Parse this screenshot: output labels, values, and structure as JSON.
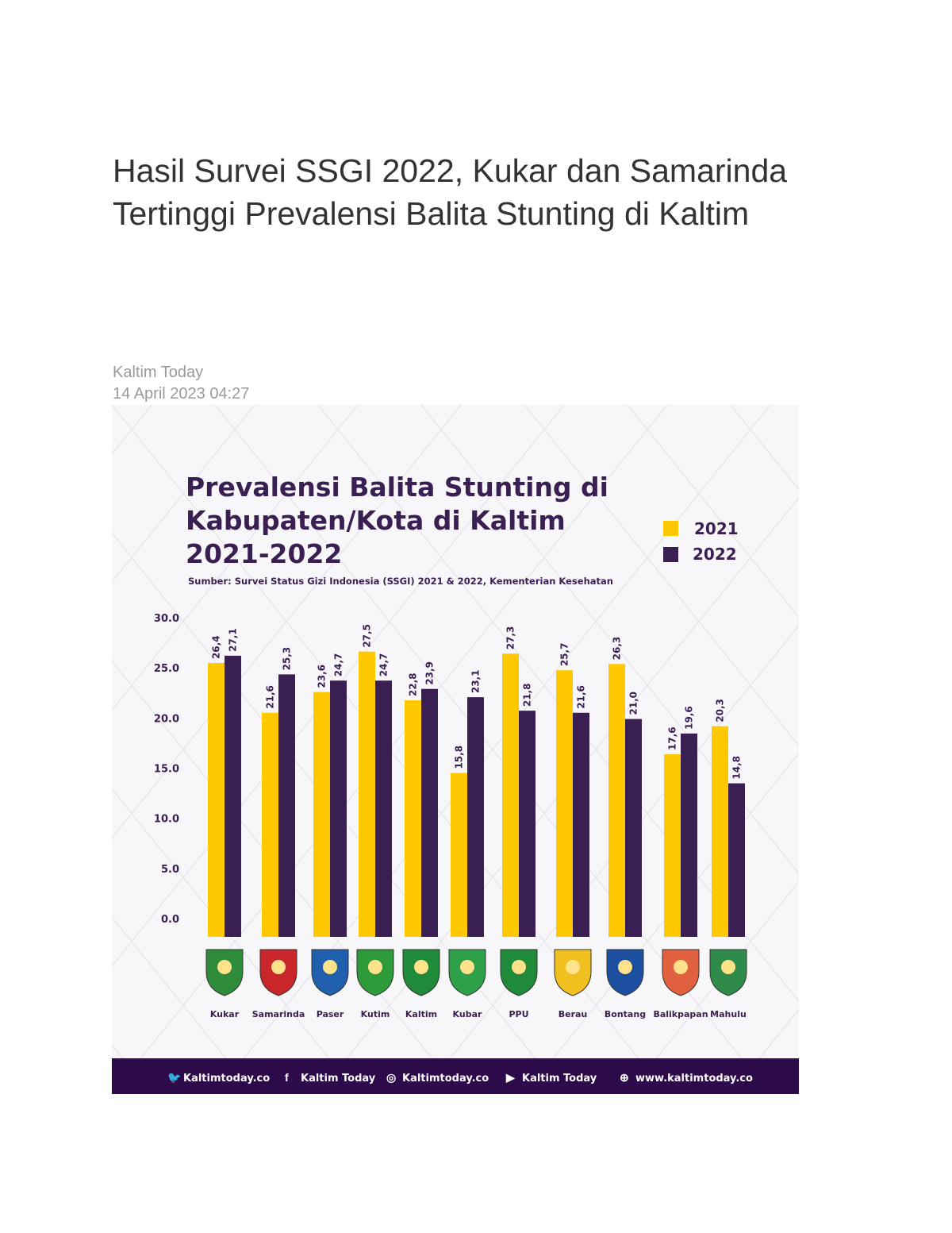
{
  "article": {
    "title": "Hasil Survei SSGI 2022, Kukar dan Samarinda Tertinggi Prevalensi Balita Stunting di Kaltim",
    "author": "Kaltim Today",
    "date": "14 April 2023 04:27"
  },
  "colors": {
    "y2021": "#ffc800",
    "y2022": "#3a1f52",
    "footer": "#2d0a4a",
    "title": "#3a1f52"
  },
  "chart_data": {
    "type": "bar",
    "title_lines": [
      "Prevalensi Balita Stunting di",
      "Kabupaten/Kota di Kaltim",
      "2021-2022"
    ],
    "subtitle": "Sumber: Survei Status Gizi Indonesia (SSGI) 2021 & 2022, Kementerian Kesehatan",
    "categories": [
      "Kukar",
      "Samarinda",
      "Paser",
      "Kutim",
      "Kaltim",
      "Kubar",
      "PPU",
      "Berau",
      "Bontang",
      "Balikpapan",
      "Mahulu"
    ],
    "series": [
      {
        "name": "2021",
        "values": [
          26.4,
          21.6,
          23.6,
          27.5,
          22.8,
          15.8,
          27.3,
          25.7,
          26.3,
          17.6,
          20.3
        ],
        "labels": [
          "26,4",
          "21,6",
          "23,6",
          "27,5",
          "22,8",
          "15,8",
          "27,3",
          "25,7",
          "26,3",
          "17,6",
          "20,3"
        ]
      },
      {
        "name": "2022",
        "values": [
          27.1,
          25.3,
          24.7,
          24.7,
          23.9,
          23.1,
          21.8,
          21.6,
          21.0,
          19.6,
          14.8
        ],
        "labels": [
          "27,1",
          "25,3",
          "24,7",
          "24,7",
          "23,9",
          "23,1",
          "21,8",
          "21,6",
          "21,0",
          "19,6",
          "14,8"
        ]
      }
    ],
    "yticks": [
      "0.0",
      "5.0",
      "10.0",
      "15.0",
      "20.0",
      "25.0",
      "30.0"
    ],
    "ylim": [
      0,
      30
    ],
    "legend_position": "top-right",
    "grid": false
  },
  "footer": {
    "items": [
      {
        "icon": "twitter-icon",
        "label": "Kaltimtoday.co"
      },
      {
        "icon": "facebook-icon",
        "label": "Kaltim Today"
      },
      {
        "icon": "instagram-icon",
        "label": "Kaltimtoday.co"
      },
      {
        "icon": "youtube-icon",
        "label": "Kaltim Today"
      },
      {
        "icon": "globe-icon",
        "label": "www.kaltimtoday.co"
      }
    ]
  }
}
